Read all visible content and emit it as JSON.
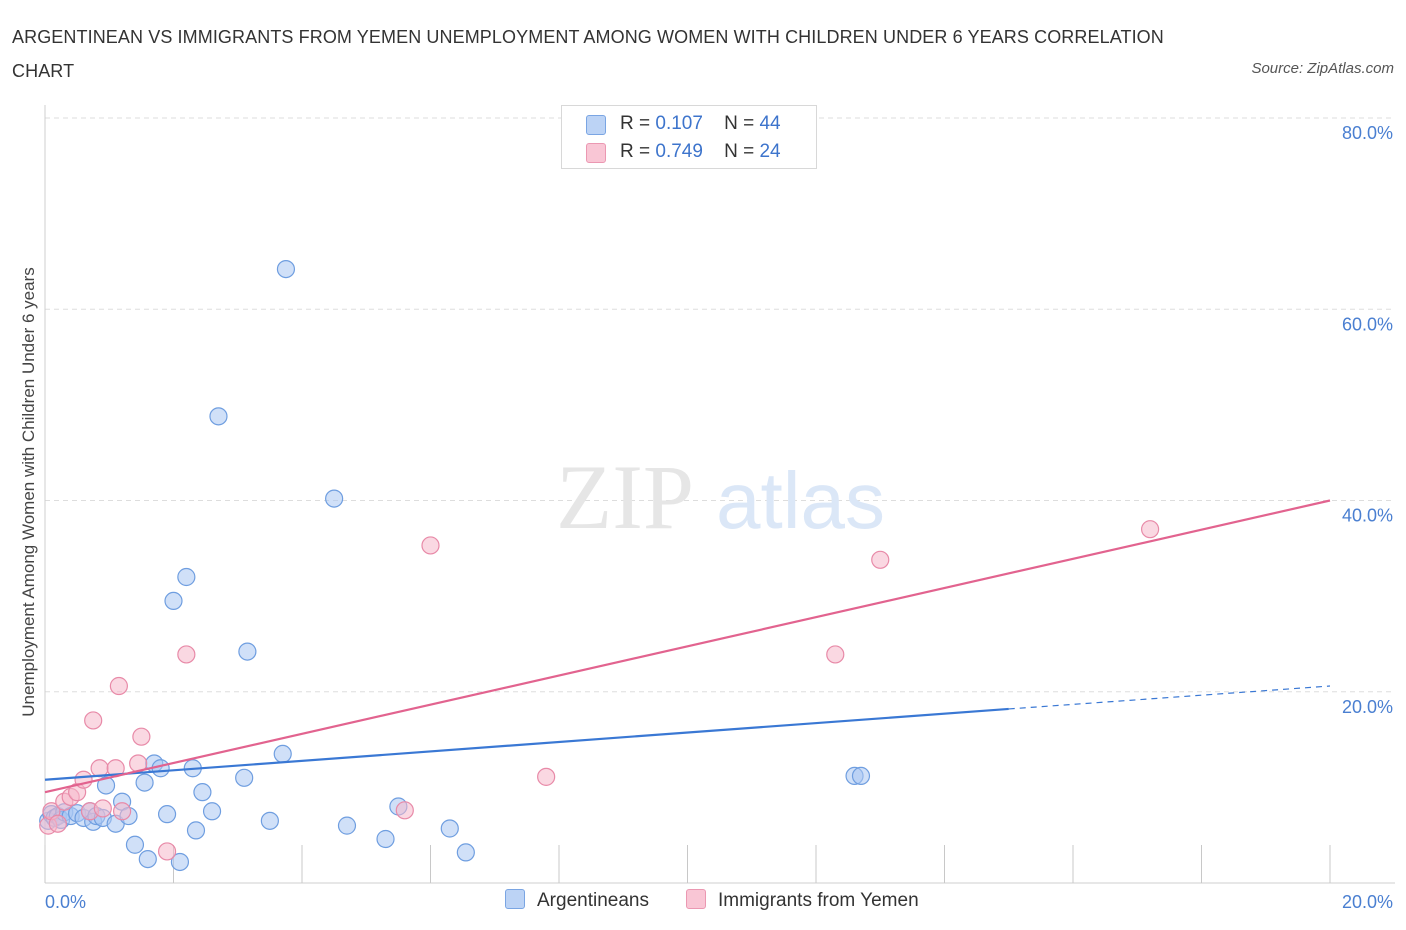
{
  "title": "ARGENTINEAN VS IMMIGRANTS FROM YEMEN UNEMPLOYMENT AMONG WOMEN WITH CHILDREN UNDER 6 YEARS CORRELATION CHART",
  "source": "Source: ZipAtlas.com",
  "watermark": {
    "zip": "ZIP",
    "atlas": "atlas"
  },
  "colors": {
    "blue_fill": "#a9c6f2",
    "blue_stroke": "#6f9ee0",
    "blue_line": "#3a78d4",
    "pink_fill": "#f6b8cb",
    "pink_stroke": "#e88aa8",
    "pink_line": "#e2638f",
    "grid": "#dddddd",
    "axis_text": "#4a7fd1"
  },
  "legend": {
    "rows": [
      {
        "r_label": "R =",
        "r_value": "0.107",
        "n_label": "N =",
        "n_value": "44"
      },
      {
        "r_label": "R =",
        "r_value": "0.749",
        "n_label": "N =",
        "n_value": "24"
      }
    ]
  },
  "bottom_legend": [
    "Argentineans",
    "Immigrants from Yemen"
  ],
  "chart_data": {
    "type": "scatter",
    "title": "ARGENTINEAN VS IMMIGRANTS FROM YEMEN UNEMPLOYMENT AMONG WOMEN WITH CHILDREN UNDER 6 YEARS CORRELATION CHART",
    "xlabel": "",
    "ylabel": "Unemployment Among Women with Children Under 6 years",
    "xlim": [
      0,
      20
    ],
    "ylim": [
      0,
      80
    ],
    "x_tick_labels": [
      "0.0%",
      "20.0%"
    ],
    "y_ticks": [
      20,
      40,
      60,
      80
    ],
    "y_tick_labels": [
      "20.0%",
      "40.0%",
      "60.0%",
      "80.0%"
    ],
    "grid": true,
    "series": [
      {
        "name": "Argentineans",
        "R": 0.107,
        "N": 44,
        "trend": {
          "x0": 0,
          "y0": 10.8,
          "x1": 15.0,
          "y1": 18.2,
          "dashed_to_x": 20,
          "dashed_to_y": 20.6
        },
        "points": [
          [
            0.05,
            6.5
          ],
          [
            0.1,
            7.2
          ],
          [
            0.15,
            6.8
          ],
          [
            0.2,
            7.0
          ],
          [
            0.25,
            6.6
          ],
          [
            0.3,
            7.4
          ],
          [
            0.4,
            7.0
          ],
          [
            0.5,
            7.3
          ],
          [
            0.6,
            6.8
          ],
          [
            0.7,
            7.5
          ],
          [
            0.75,
            6.4
          ],
          [
            0.8,
            7.0
          ],
          [
            0.9,
            6.8
          ],
          [
            0.95,
            10.2
          ],
          [
            1.1,
            6.2
          ],
          [
            1.2,
            8.5
          ],
          [
            1.3,
            7.0
          ],
          [
            1.4,
            4.0
          ],
          [
            1.55,
            10.5
          ],
          [
            1.6,
            2.5
          ],
          [
            1.7,
            12.5
          ],
          [
            1.8,
            12.0
          ],
          [
            1.9,
            7.2
          ],
          [
            2.0,
            29.5
          ],
          [
            2.1,
            2.2
          ],
          [
            2.2,
            32.0
          ],
          [
            2.3,
            12.0
          ],
          [
            2.35,
            5.5
          ],
          [
            2.45,
            9.5
          ],
          [
            2.6,
            7.5
          ],
          [
            2.7,
            48.8
          ],
          [
            3.1,
            11.0
          ],
          [
            3.15,
            24.2
          ],
          [
            3.5,
            6.5
          ],
          [
            3.7,
            13.5
          ],
          [
            3.75,
            64.2
          ],
          [
            4.5,
            40.2
          ],
          [
            4.7,
            6.0
          ],
          [
            5.3,
            4.6
          ],
          [
            5.5,
            8.0
          ],
          [
            6.3,
            5.7
          ],
          [
            6.55,
            3.2
          ],
          [
            12.6,
            11.2
          ],
          [
            12.7,
            11.2
          ]
        ]
      },
      {
        "name": "Immigrants from Yemen",
        "R": 0.749,
        "N": 24,
        "trend": {
          "x0": 0,
          "y0": 9.5,
          "x1": 20,
          "y1": 40.0
        },
        "points": [
          [
            0.05,
            6.0
          ],
          [
            0.1,
            7.5
          ],
          [
            0.2,
            6.2
          ],
          [
            0.3,
            8.5
          ],
          [
            0.4,
            9.0
          ],
          [
            0.5,
            9.5
          ],
          [
            0.6,
            10.8
          ],
          [
            0.7,
            7.5
          ],
          [
            0.75,
            17.0
          ],
          [
            0.85,
            12.0
          ],
          [
            0.9,
            7.8
          ],
          [
            1.1,
            12.0
          ],
          [
            1.15,
            20.6
          ],
          [
            1.2,
            7.5
          ],
          [
            1.45,
            12.5
          ],
          [
            1.5,
            15.3
          ],
          [
            1.9,
            3.3
          ],
          [
            2.2,
            23.9
          ],
          [
            5.6,
            7.6
          ],
          [
            6.0,
            35.3
          ],
          [
            7.8,
            11.1
          ],
          [
            12.3,
            23.9
          ],
          [
            13.0,
            33.8
          ],
          [
            17.2,
            37.0
          ]
        ]
      }
    ]
  }
}
